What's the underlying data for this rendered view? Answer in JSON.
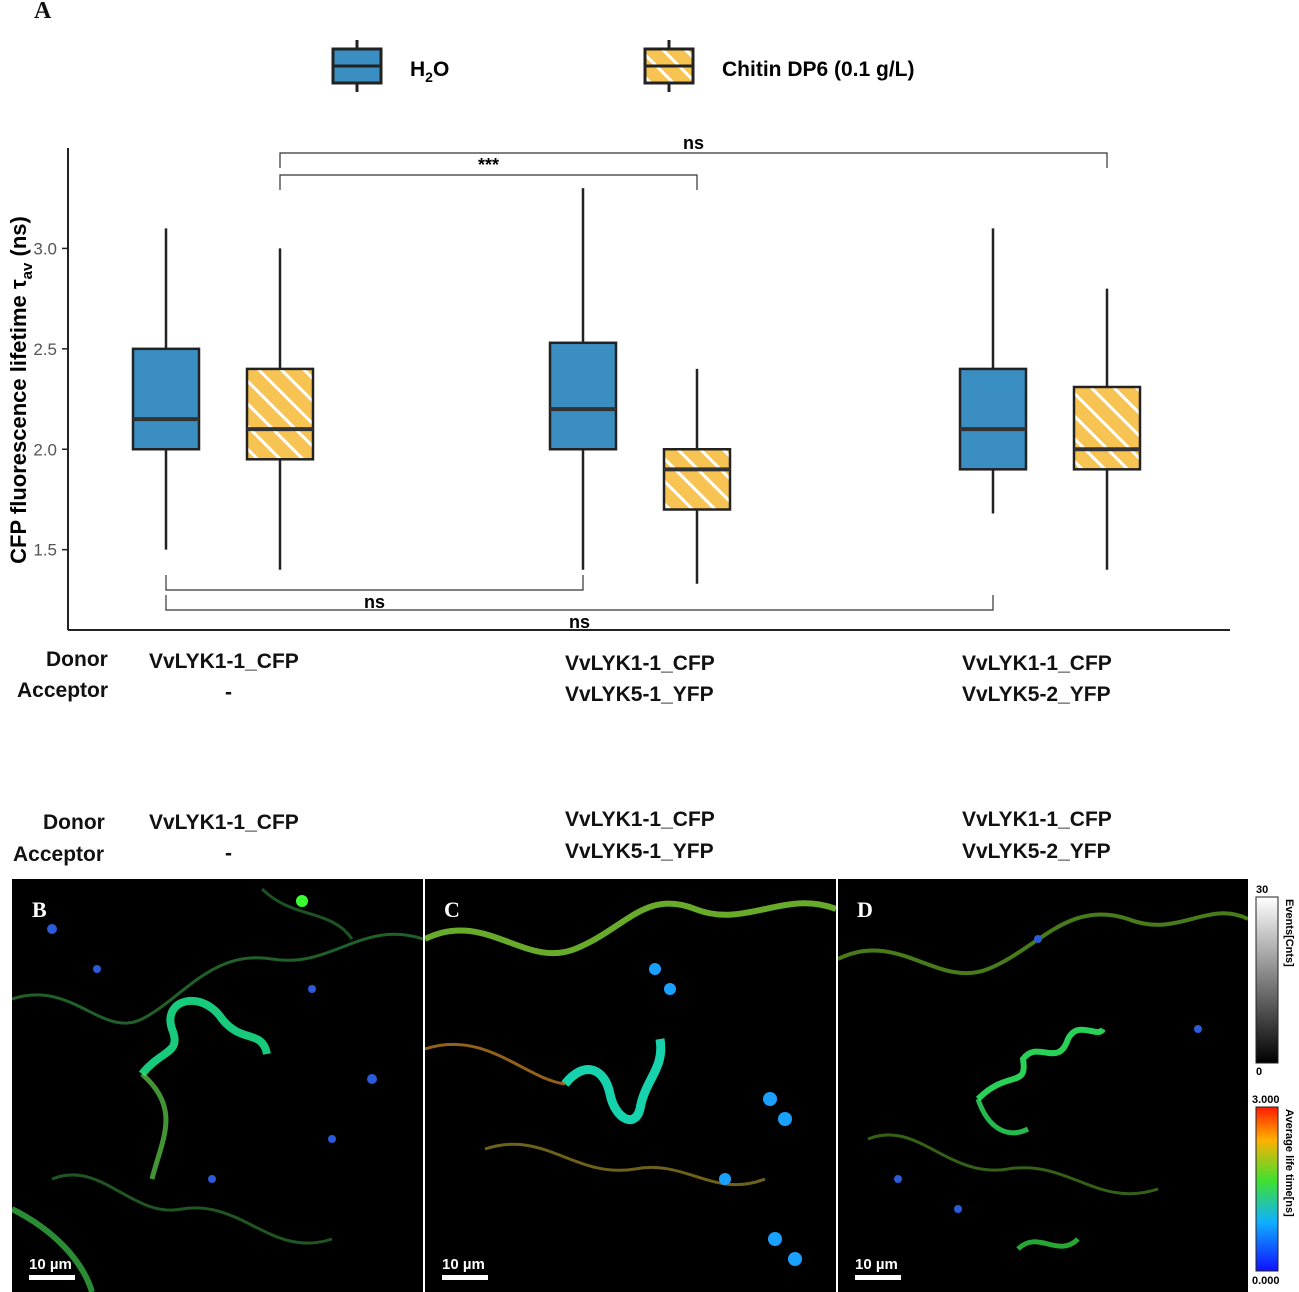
{
  "panel_A_label": "A",
  "legend": {
    "water_label_main": "H",
    "water_label_sub": "2",
    "water_label_end": "O",
    "chitin_label": "Chitin DP6 (0.1 g/L)"
  },
  "colors": {
    "water": "#3a8ec2",
    "chitin": "#f7c453",
    "stripe": "#ffffff"
  },
  "chart_data": {
    "type": "box",
    "ylabel_main": "CFP fluorescence lifetime τ",
    "ylabel_sub": "av",
    "ylabel_end": " (ns)",
    "ylim": [
      1.1,
      3.5
    ],
    "yticks": [
      "1.5",
      "2.0",
      "2.5",
      "3.0"
    ],
    "ytick_values": [
      1.5,
      2.0,
      2.5,
      3.0
    ],
    "groups": [
      {
        "boxes": [
          {
            "series": "H2O",
            "min": 1.5,
            "q1": 2.0,
            "median": 2.15,
            "q3": 2.5,
            "max": 3.1
          },
          {
            "series": "Chitin",
            "min": 1.4,
            "q1": 1.95,
            "median": 2.1,
            "q3": 2.4,
            "max": 3.0
          }
        ]
      },
      {
        "boxes": [
          {
            "series": "H2O",
            "min": 1.4,
            "q1": 2.0,
            "median": 2.2,
            "q3": 2.53,
            "max": 3.3
          },
          {
            "series": "Chitin",
            "min": 1.33,
            "q1": 1.7,
            "median": 1.9,
            "q3": 2.0,
            "max": 2.4
          }
        ]
      },
      {
        "boxes": [
          {
            "series": "H2O",
            "min": 1.68,
            "q1": 1.9,
            "median": 2.1,
            "q3": 2.4,
            "max": 3.1
          },
          {
            "series": "Chitin",
            "min": 1.4,
            "q1": 1.9,
            "median": 2.0,
            "q3": 2.31,
            "max": 2.8
          }
        ]
      }
    ],
    "significance": [
      {
        "label": "ns",
        "from": [
          0,
          1
        ],
        "to": [
          2,
          1
        ],
        "position": "above"
      },
      {
        "label": "***",
        "from": [
          0,
          1
        ],
        "to": [
          1,
          1
        ],
        "position": "above"
      },
      {
        "label": "ns",
        "from": [
          0,
          0
        ],
        "to": [
          1,
          0
        ],
        "position": "below"
      },
      {
        "label": "ns",
        "from": [
          0,
          0
        ],
        "to": [
          2,
          0
        ],
        "position": "below"
      }
    ]
  },
  "table_A": {
    "donor_label": "Donor",
    "acceptor_label": "Acceptor",
    "col1_donor": "VvLYK1-1_CFP",
    "col1_acceptor": "-",
    "col2_donor": "VvLYK1-1_CFP",
    "col2_acceptor": "VvLYK5-1_YFP",
    "col3_donor": "VvLYK1-1_CFP",
    "col3_acceptor": "VvLYK5-2_YFP"
  },
  "table_B": {
    "donor_label": "Donor",
    "acceptor_label": "Acceptor",
    "col1_donor": "VvLYK1-1_CFP",
    "col1_acceptor": "-",
    "col2_donor": "VvLYK1-1_CFP",
    "col2_acceptor": "VvLYK5-1_YFP",
    "col3_donor": "VvLYK1-1_CFP",
    "col3_acceptor": "VvLYK5-2_YFP"
  },
  "images": {
    "panel_B": "B",
    "panel_C": "C",
    "panel_D": "D",
    "scale_text": "10 µm"
  },
  "colorbars": {
    "events_max": "30",
    "events_min": "0",
    "events_title": "Events[Cnts]",
    "lifetime_max": "3.000",
    "lifetime_min": "0.000",
    "lifetime_title": "Average life time[ns]"
  }
}
